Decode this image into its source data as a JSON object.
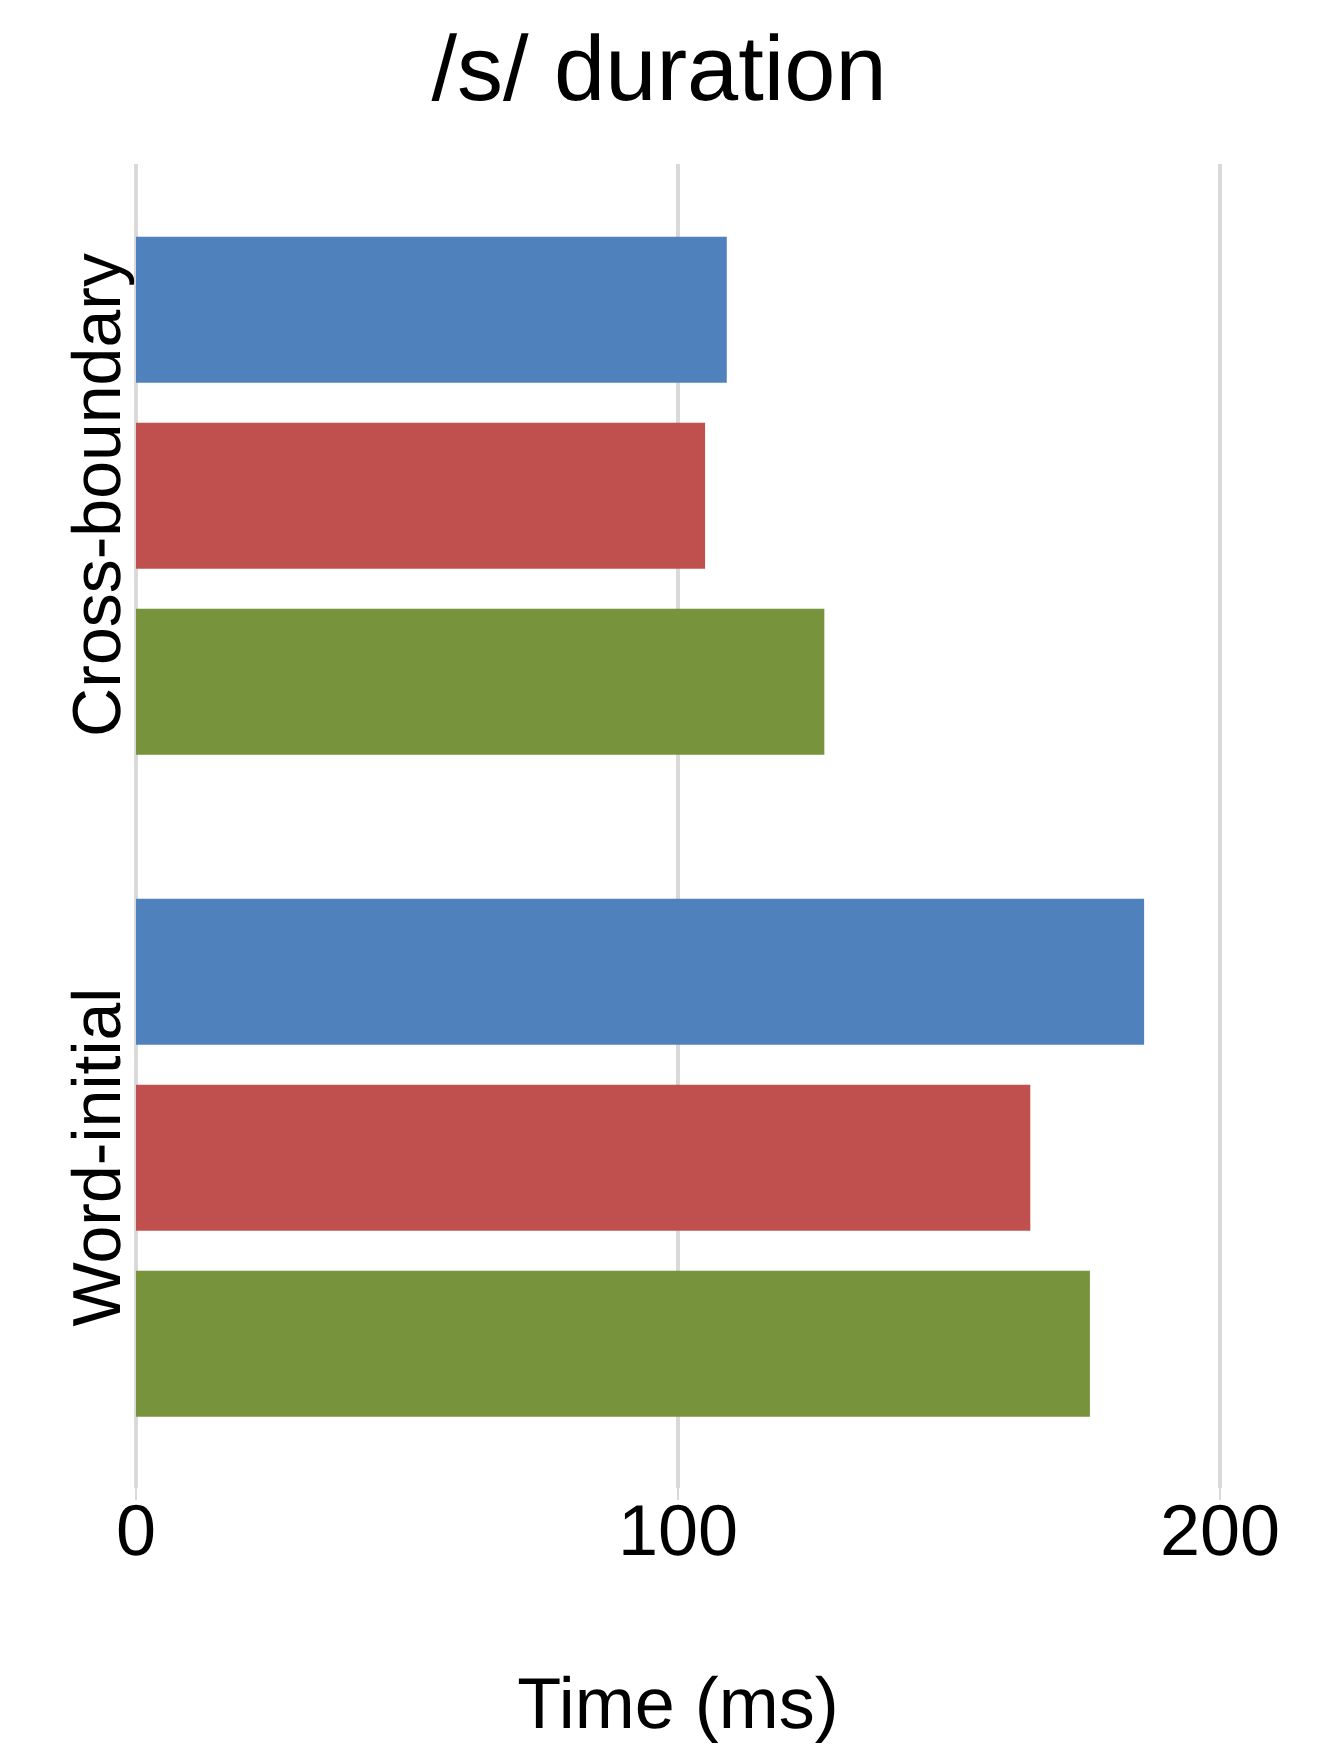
{
  "chart_data": {
    "type": "bar",
    "orientation": "horizontal",
    "title": "/s/ duration",
    "xlabel": "Time (ms)",
    "categories": [
      "Cross-boundary",
      "Word-initial"
    ],
    "series": [
      {
        "color": "#4f81bd",
        "values": [
          109,
          186
        ]
      },
      {
        "color": "#c0504d",
        "values": [
          105,
          165
        ]
      },
      {
        "color": "#77933c",
        "values": [
          127,
          176
        ]
      }
    ],
    "xlim": [
      0,
      200
    ],
    "xticks": [
      0,
      100,
      200
    ],
    "grid": "x",
    "legend": false
  }
}
